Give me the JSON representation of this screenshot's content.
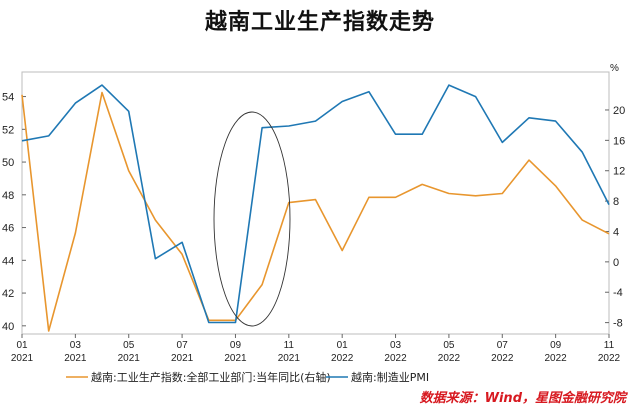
{
  "chart_data": {
    "type": "line",
    "title": "越南工业生产指数走势",
    "unit_right": "%",
    "x": [
      "01|2021",
      "02|2021",
      "03|2021",
      "04|2021",
      "05|2021",
      "06|2021",
      "07|2021",
      "08|2021",
      "09|2021",
      "10|2021",
      "11|2021",
      "12|2021",
      "01|2022",
      "02|2022",
      "03|2022",
      "04|2022",
      "05|2022",
      "06|2022",
      "07|2022",
      "08|2022",
      "09|2022",
      "10|2022",
      "11|2022"
    ],
    "x_tick_labels": [
      {
        "month": "01",
        "year": "2021"
      },
      {
        "month": "03",
        "year": "2021"
      },
      {
        "month": "05",
        "year": "2021"
      },
      {
        "month": "07",
        "year": "2021"
      },
      {
        "month": "09",
        "year": "2021"
      },
      {
        "month": "11",
        "year": "2021"
      },
      {
        "month": "01",
        "year": "2022"
      },
      {
        "month": "03",
        "year": "2022"
      },
      {
        "month": "05",
        "year": "2022"
      },
      {
        "month": "07",
        "year": "2022"
      },
      {
        "month": "09",
        "year": "2022"
      },
      {
        "month": "11",
        "year": "2022"
      }
    ],
    "y_left": {
      "range": [
        39.5,
        55.5
      ],
      "ticks": [
        40,
        42,
        44,
        46,
        48,
        50,
        52,
        54
      ]
    },
    "y_right": {
      "range": [
        -9.5,
        25
      ],
      "ticks": [
        -8,
        -4,
        0,
        4,
        8,
        12,
        16,
        20
      ]
    },
    "series": [
      {
        "name": "越南:工业生产指数:全部工业部门:当年同比(右轴)",
        "axis": "right",
        "color": "#e8962e",
        "values": [
          22.0,
          -9.1,
          3.8,
          22.3,
          12.0,
          5.5,
          1.0,
          -7.7,
          -7.7,
          -3.0,
          7.8,
          8.2,
          1.5,
          8.5,
          8.5,
          10.2,
          9.0,
          8.7,
          9.0,
          13.4,
          10.0,
          5.5,
          3.7
        ]
      },
      {
        "name": "越南:制造业PMI",
        "axis": "left",
        "color": "#1f78b4",
        "values": [
          51.3,
          51.6,
          53.6,
          54.7,
          53.1,
          44.1,
          45.1,
          40.2,
          40.2,
          52.1,
          52.2,
          52.5,
          53.7,
          54.3,
          51.7,
          51.7,
          54.7,
          54.0,
          51.2,
          52.7,
          52.5,
          50.6,
          47.4
        ]
      }
    ],
    "grid": false,
    "legend": "bottom"
  },
  "source_note": "数据来源：Wind，星图金融研究院"
}
